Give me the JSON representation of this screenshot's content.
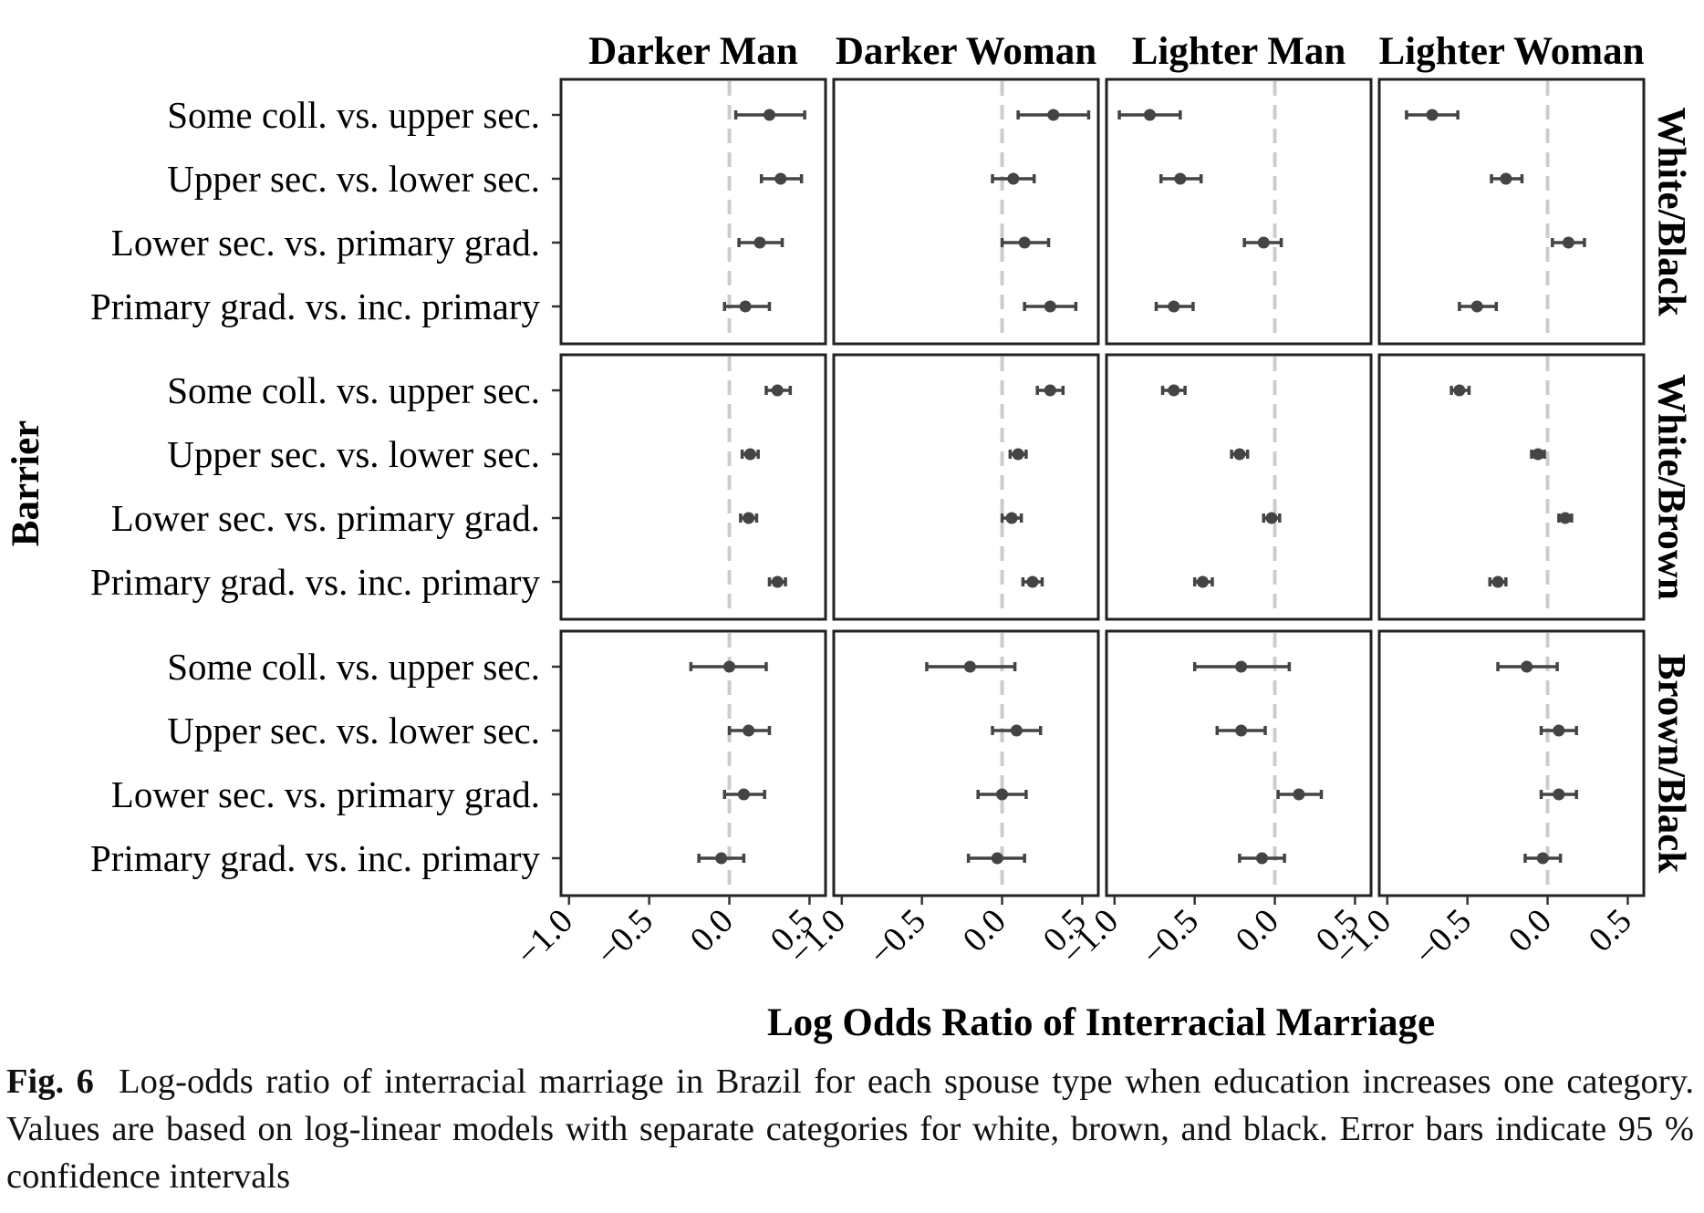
{
  "chart_data": {
    "type": "scatter",
    "subtype": "dot-and-whisker faceted plot with 95% confidence intervals",
    "xlabel": "Log Odds Ratio of Interracial Marriage",
    "ylabel": "Barrier",
    "xlim": [
      -1.05,
      0.6
    ],
    "xticks": [
      -1.0,
      -0.5,
      0.0,
      0.5
    ],
    "xtick_labels": [
      "−1.0",
      "−0.5",
      "0.0",
      "0.5"
    ],
    "reference_line": {
      "x": 0,
      "style": "dashed",
      "color": "#cccccc"
    },
    "columns": [
      "Darker Man",
      "Darker Woman",
      "Lighter Man",
      "Lighter Woman"
    ],
    "rows": [
      "White/Black",
      "White/Brown",
      "Brown/Black"
    ],
    "categories": [
      "Some coll. vs. upper sec.",
      "Upper sec. vs. lower sec.",
      "Lower sec. vs. primary grad.",
      "Primary grad. vs. inc. primary"
    ],
    "grid": false,
    "point_color": "#444444",
    "panels": [
      {
        "row": "White/Black",
        "column": "Darker Man",
        "estimates": [
          0.25,
          0.32,
          0.19,
          0.1
        ],
        "ci_low": [
          0.04,
          0.2,
          0.06,
          -0.03
        ],
        "ci_high": [
          0.47,
          0.45,
          0.33,
          0.25
        ]
      },
      {
        "row": "White/Black",
        "column": "Darker Woman",
        "estimates": [
          0.32,
          0.07,
          0.14,
          0.3
        ],
        "ci_low": [
          0.1,
          -0.06,
          0.0,
          0.14
        ],
        "ci_high": [
          0.54,
          0.2,
          0.29,
          0.46
        ]
      },
      {
        "row": "White/Black",
        "column": "Lighter Man",
        "estimates": [
          -0.78,
          -0.59,
          -0.07,
          -0.63
        ],
        "ci_low": [
          -0.97,
          -0.71,
          -0.19,
          -0.74
        ],
        "ci_high": [
          -0.59,
          -0.46,
          0.04,
          -0.51
        ]
      },
      {
        "row": "White/Black",
        "column": "Lighter Woman",
        "estimates": [
          -0.72,
          -0.26,
          0.13,
          -0.44
        ],
        "ci_low": [
          -0.88,
          -0.35,
          0.03,
          -0.55
        ],
        "ci_high": [
          -0.56,
          -0.16,
          0.23,
          -0.32
        ]
      },
      {
        "row": "White/Brown",
        "column": "Darker Man",
        "estimates": [
          0.3,
          0.13,
          0.12,
          0.3
        ],
        "ci_low": [
          0.23,
          0.08,
          0.07,
          0.25
        ],
        "ci_high": [
          0.38,
          0.18,
          0.17,
          0.35
        ]
      },
      {
        "row": "White/Brown",
        "column": "Darker Woman",
        "estimates": [
          0.3,
          0.1,
          0.06,
          0.19
        ],
        "ci_low": [
          0.22,
          0.05,
          0.0,
          0.13
        ],
        "ci_high": [
          0.38,
          0.15,
          0.12,
          0.25
        ]
      },
      {
        "row": "White/Brown",
        "column": "Lighter Man",
        "estimates": [
          -0.63,
          -0.22,
          -0.02,
          -0.45
        ],
        "ci_low": [
          -0.7,
          -0.27,
          -0.07,
          -0.5
        ],
        "ci_high": [
          -0.56,
          -0.17,
          0.03,
          -0.39
        ]
      },
      {
        "row": "White/Brown",
        "column": "Lighter Woman",
        "estimates": [
          -0.55,
          -0.06,
          0.11,
          -0.31
        ],
        "ci_low": [
          -0.6,
          -0.1,
          0.07,
          -0.36
        ],
        "ci_high": [
          -0.49,
          -0.02,
          0.15,
          -0.26
        ]
      },
      {
        "row": "Brown/Black",
        "column": "Darker Man",
        "estimates": [
          0.0,
          0.12,
          0.09,
          -0.05
        ],
        "ci_low": [
          -0.24,
          0.0,
          -0.03,
          -0.19
        ],
        "ci_high": [
          0.23,
          0.25,
          0.22,
          0.09
        ]
      },
      {
        "row": "Brown/Black",
        "column": "Darker Woman",
        "estimates": [
          -0.2,
          0.09,
          0.0,
          -0.03
        ],
        "ci_low": [
          -0.47,
          -0.06,
          -0.15,
          -0.21
        ],
        "ci_high": [
          0.08,
          0.24,
          0.15,
          0.14
        ]
      },
      {
        "row": "Brown/Black",
        "column": "Lighter Man",
        "estimates": [
          -0.21,
          -0.21,
          0.15,
          -0.08
        ],
        "ci_low": [
          -0.5,
          -0.36,
          0.02,
          -0.22
        ],
        "ci_high": [
          0.09,
          -0.06,
          0.29,
          0.06
        ]
      },
      {
        "row": "Brown/Black",
        "column": "Lighter Woman",
        "estimates": [
          -0.13,
          0.07,
          0.07,
          -0.03
        ],
        "ci_low": [
          -0.31,
          -0.04,
          -0.04,
          -0.14
        ],
        "ci_high": [
          0.06,
          0.18,
          0.18,
          0.08
        ]
      }
    ]
  },
  "caption": {
    "label": "Fig. 6",
    "text": "Log-odds ratio of interracial marriage in Brazil for each spouse type when education increases one category. Values are based on log-linear models with separate categories for white, brown, and black. Error bars indicate 95 % confidence intervals"
  }
}
